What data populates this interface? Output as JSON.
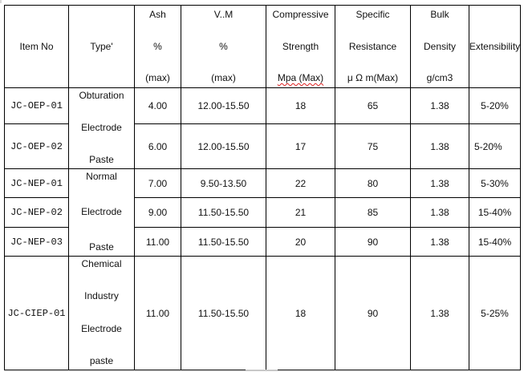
{
  "headers": [
    {
      "lines": [
        "Item No"
      ]
    },
    {
      "lines": [
        "Type'"
      ]
    },
    {
      "lines": [
        "Ash",
        "%",
        "(max)"
      ]
    },
    {
      "lines": [
        "V..M",
        "%",
        "(max)"
      ]
    },
    {
      "lines": [
        "Compressive",
        "Strength",
        "Mpa (Max)"
      ]
    },
    {
      "lines": [
        "Specific",
        "Resistance",
        "μ Ω m(Max)"
      ]
    },
    {
      "lines": [
        "Bulk",
        "Density",
        "g/cm3"
      ]
    },
    {
      "lines": [
        "Extensibility"
      ]
    }
  ],
  "types": [
    [
      "Obturation",
      "Electrode",
      "Paste"
    ],
    [
      "Normal",
      "Electrode",
      "Paste"
    ],
    [
      "Chemical",
      "Industry",
      "Electrode",
      "paste"
    ]
  ],
  "rows": [
    {
      "item": "JC-OEP-01",
      "ash": "4.00",
      "vm": "12.00-15.50",
      "strength": "18",
      "resistance": "65",
      "density": "1.38",
      "extensibility": "5-20%"
    },
    {
      "item": "JC-OEP-02",
      "ash": "6.00",
      "vm": "12.00-15.50",
      "strength": "17",
      "resistance": "75",
      "density": "1.38",
      "extensibility": "5-20%"
    },
    {
      "item": "JC-NEP-01",
      "ash": "7.00",
      "vm": "9.50-13.50",
      "strength": "22",
      "resistance": "80",
      "density": "1.38",
      "extensibility": "5-30%"
    },
    {
      "item": "JC-NEP-02",
      "ash": "9.00",
      "vm": "11.50-15.50",
      "strength": "21",
      "resistance": "85",
      "density": "1.38",
      "extensibility": "15-40%"
    },
    {
      "item": "JC-NEP-03",
      "ash": "11.00",
      "vm": "11.50-15.50",
      "strength": "20",
      "resistance": "90",
      "density": "1.38",
      "extensibility": "15-40%"
    },
    {
      "item": "JC-CIEP-01",
      "ash": "11.00",
      "vm": "11.50-15.50",
      "strength": "18",
      "resistance": "90",
      "density": "1.38",
      "extensibility": "5-25%"
    }
  ]
}
